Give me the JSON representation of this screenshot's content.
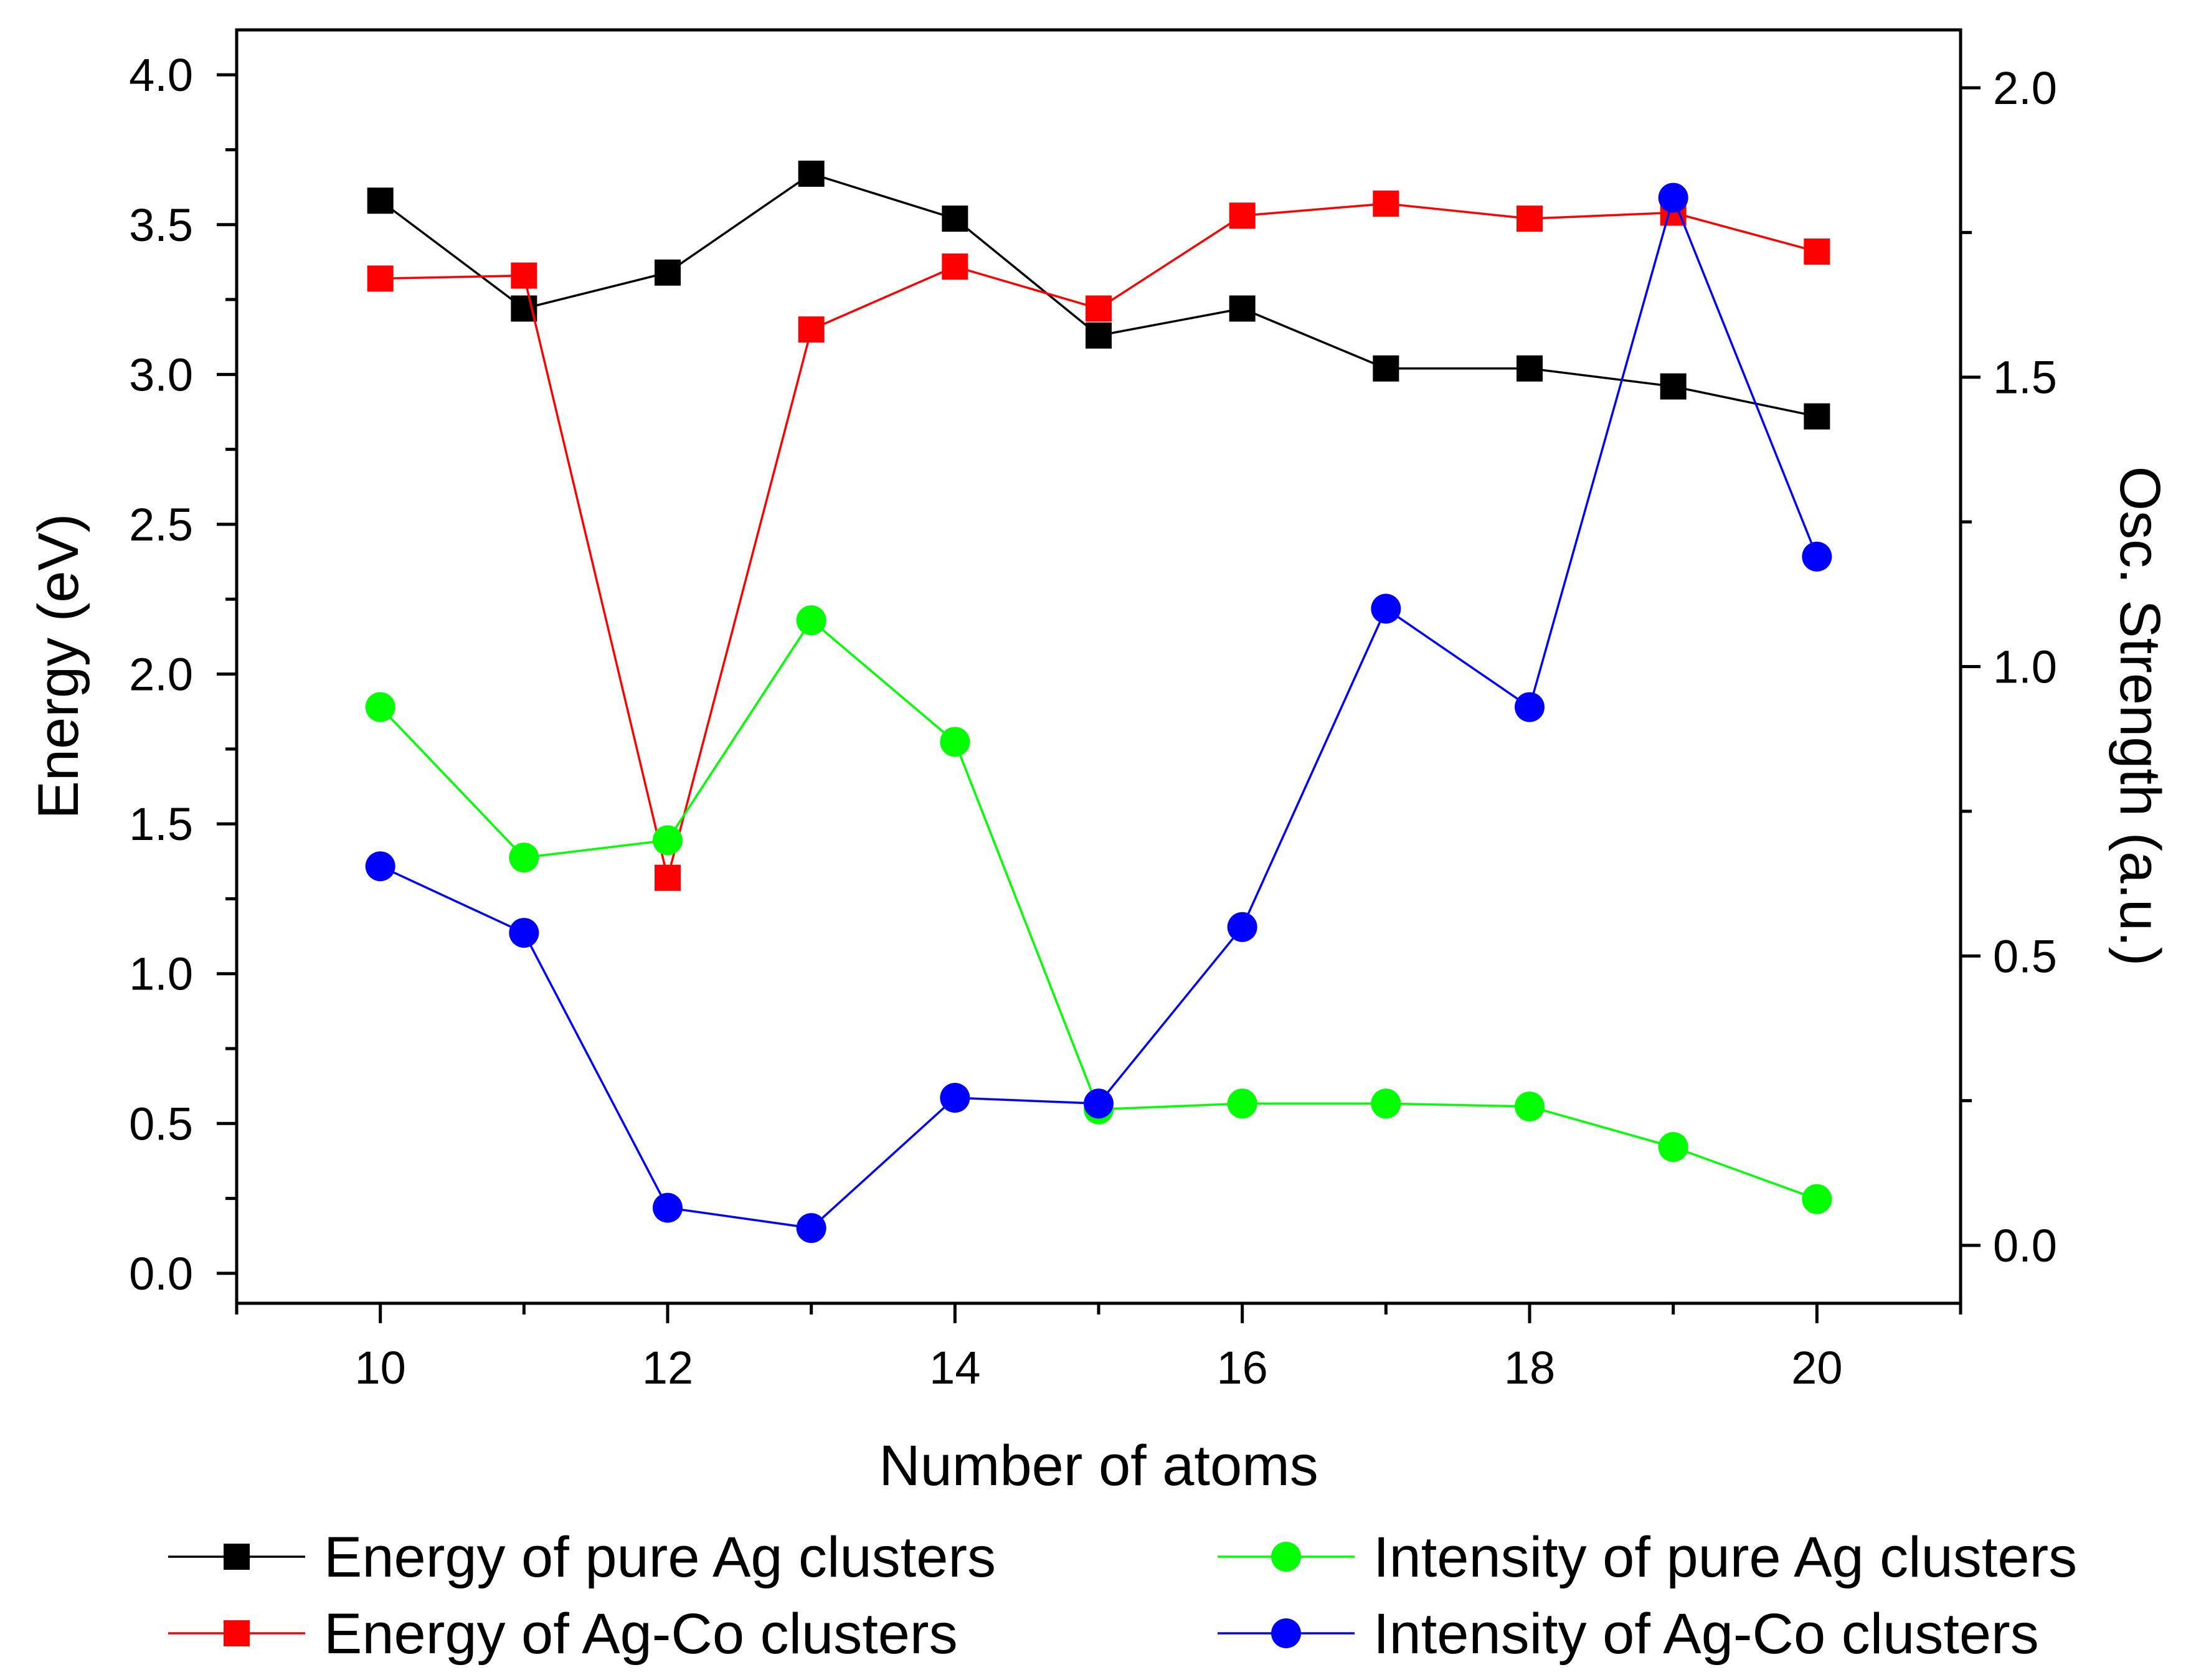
{
  "chart_data": {
    "type": "line",
    "xlabel": "Number of atoms",
    "ylabel_left": "Energy (eV)",
    "ylabel_right": "Osc. Strength (a.u.)",
    "xlim": [
      9,
      21
    ],
    "ylim_left": [
      -0.1,
      4.15
    ],
    "ylim_right": [
      -0.1,
      2.1
    ],
    "x_ticks": [
      10,
      12,
      14,
      16,
      18,
      20
    ],
    "y_ticks_left": [
      "0.0",
      "0.5",
      "1.0",
      "1.5",
      "2.0",
      "2.5",
      "3.0",
      "3.5",
      "4.0"
    ],
    "y_ticks_right": [
      "0.0",
      "0.5",
      "1.0",
      "1.5",
      "2.0"
    ],
    "grid": false,
    "legend_position": "bottom",
    "x": [
      10,
      11,
      12,
      13,
      14,
      15,
      16,
      17,
      18,
      19,
      20
    ],
    "series": [
      {
        "name": "Energy of pure Ag clusters",
        "axis": "left",
        "marker": "square",
        "color": "#000000",
        "values": [
          3.58,
          3.22,
          3.34,
          3.67,
          3.52,
          3.13,
          3.22,
          3.02,
          3.02,
          2.96,
          2.86
        ]
      },
      {
        "name": "Energy of Ag-Co clusters",
        "axis": "left",
        "marker": "square",
        "color": "#ff0000",
        "values": [
          3.32,
          3.33,
          1.32,
          3.15,
          3.36,
          3.22,
          3.53,
          3.57,
          3.52,
          3.54,
          3.41
        ]
      },
      {
        "name": "Intensity of pure Ag clusters",
        "axis": "right",
        "marker": "circle",
        "color": "#00ff00",
        "values": [
          0.93,
          0.67,
          0.7,
          1.08,
          0.87,
          0.235,
          0.245,
          0.245,
          0.24,
          0.17,
          0.08
        ]
      },
      {
        "name": "Intensity of Ag-Co clusters",
        "axis": "right",
        "marker": "circle",
        "color": "#0000ff",
        "values": [
          0.655,
          0.54,
          0.065,
          0.03,
          0.255,
          0.245,
          0.55,
          1.1,
          0.93,
          1.81,
          1.19
        ]
      }
    ]
  }
}
